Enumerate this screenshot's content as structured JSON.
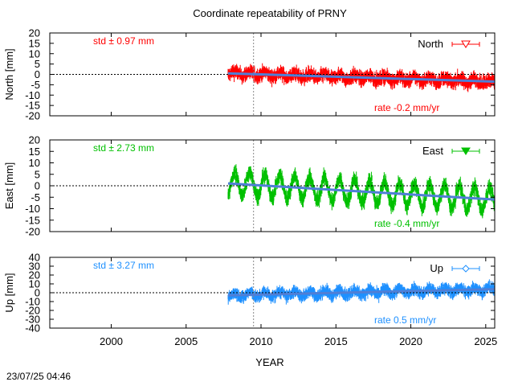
{
  "page": {
    "timestamp": "23/07/25 04:46"
  },
  "chart_data": {
    "title": "Coordinate repeatability of PRNY",
    "xlabel": "YEAR",
    "xlim": [
      1995.9,
      2025.6
    ],
    "x_ticks": [
      2000,
      2005,
      2010,
      2015,
      2020,
      2025
    ],
    "vline_x": 2009.5,
    "panels": [
      {
        "type": "scatter",
        "id": "north",
        "ylabel": "North [mm]",
        "ylim": [
          -20,
          20
        ],
        "y_ticks": [
          20,
          15,
          10,
          5,
          0,
          -5,
          -10,
          -15,
          -20
        ],
        "legend": "North",
        "legend_marker": "triangle-down-open",
        "color": "#ff0000",
        "std_label": "std ± 0.97 mm",
        "rate_label": "rate -0.2 mm/yr",
        "data_start": 2007.8,
        "data_end": 2025.6,
        "amplitude_mm": 1.0,
        "noise_mm": 2.0,
        "trend_start_mm": 0.5,
        "trend_end_mm": -3.5
      },
      {
        "type": "scatter",
        "id": "east",
        "ylabel": "East [mm]",
        "ylim": [
          -20,
          20
        ],
        "y_ticks": [
          20,
          15,
          10,
          5,
          0,
          -5,
          -10,
          -15,
          -20
        ],
        "legend": "East",
        "legend_marker": "triangle-down-filled",
        "color": "#00c000",
        "std_label": "std ± 2.73 mm",
        "rate_label": "rate -0.4 mm/yr",
        "data_start": 2007.8,
        "data_end": 2025.6,
        "amplitude_mm": 5.0,
        "noise_mm": 2.0,
        "trend_start_mm": 1.0,
        "trend_end_mm": -6.0
      },
      {
        "type": "scatter",
        "id": "up",
        "ylabel": "Up [mm]",
        "ylim": [
          -40,
          40
        ],
        "y_ticks": [
          40,
          30,
          20,
          10,
          0,
          -10,
          -20,
          -30,
          -40
        ],
        "legend": "Up",
        "legend_marker": "diamond-open",
        "color": "#1e90ff",
        "std_label": "std ± 3.27 mm",
        "rate_label": "rate  0.5 mm/yr",
        "data_start": 2007.8,
        "data_end": 2025.6,
        "amplitude_mm": 3.0,
        "noise_mm": 4.0,
        "trend_start_mm": -3.0,
        "trend_end_mm": 4.0
      }
    ],
    "trend_line_color": "#4f7fd6",
    "zero_line": "dotted black",
    "grid": false
  }
}
